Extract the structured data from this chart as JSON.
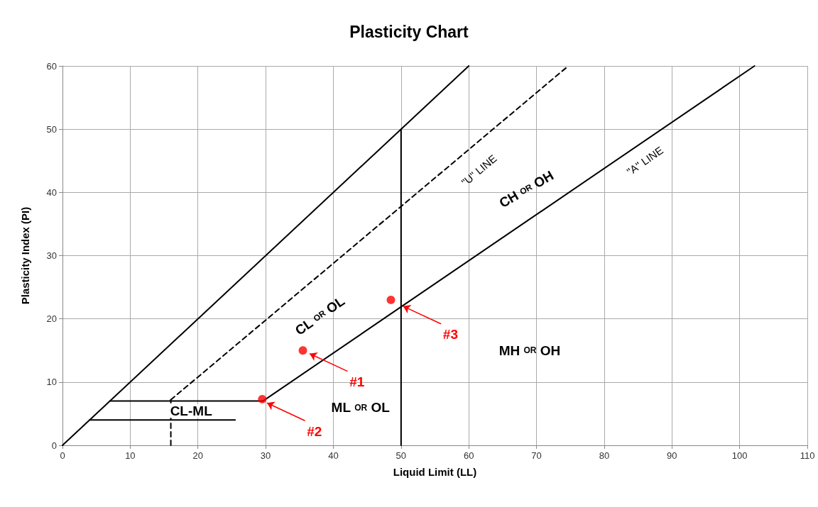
{
  "chart_data": {
    "type": "line",
    "title": "Plasticity Chart",
    "xlabel": "Liquid Limit (LL)",
    "ylabel": "Plasticity Index (PI)",
    "xlim": [
      0,
      110
    ],
    "xticks": [
      0,
      10,
      20,
      30,
      40,
      50,
      60,
      70,
      80,
      90,
      100,
      110
    ],
    "ylim": [
      0,
      60
    ],
    "yticks": [
      0,
      10,
      20,
      30,
      40,
      50,
      60
    ],
    "grid": true,
    "marker": "none",
    "line_style": "solid",
    "series": [
      {
        "color": "#000000",
        "x": [
          0,
          60
        ],
        "values": [
          0,
          60
        ]
      },
      {
        "color": "#000000",
        "line_style": "dashed",
        "x": [
          16,
          74.7
        ],
        "values": [
          7.2,
          60
        ]
      },
      {
        "color": "#000000",
        "line_style": "dashed",
        "x": [
          16,
          16
        ],
        "values": [
          0,
          7.2
        ]
      },
      {
        "color": "#000000",
        "x": [
          29.6,
          102.2
        ],
        "values": [
          7,
          60
        ]
      },
      {
        "color": "#000000",
        "x": [
          50,
          50
        ],
        "values": [
          0,
          50
        ]
      },
      {
        "color": "#000000",
        "x": [
          7,
          29.6
        ],
        "values": [
          7,
          7
        ]
      },
      {
        "color": "#000000",
        "x": [
          4,
          25.5
        ],
        "values": [
          4,
          4
        ]
      },
      {
        "type": "scatter",
        "marker": "circle",
        "color": "#ff0000",
        "x": [
          35.5,
          29.5,
          48.5
        ],
        "values": [
          15,
          7.3,
          23
        ]
      }
    ],
    "annotations": [
      "CL-ML",
      "ML OR OL",
      "CL OR OL",
      "CH OR OH",
      "MH OR OH",
      "\"U\" LINE",
      "\"A\" LINE",
      {
        "text": "#1",
        "x": 36.5,
        "y": 14.5
      },
      {
        "text": "#2",
        "x": 30.2,
        "y": 6.7
      },
      {
        "text": "#3",
        "x": 50.3,
        "y": 22
      }
    ]
  }
}
